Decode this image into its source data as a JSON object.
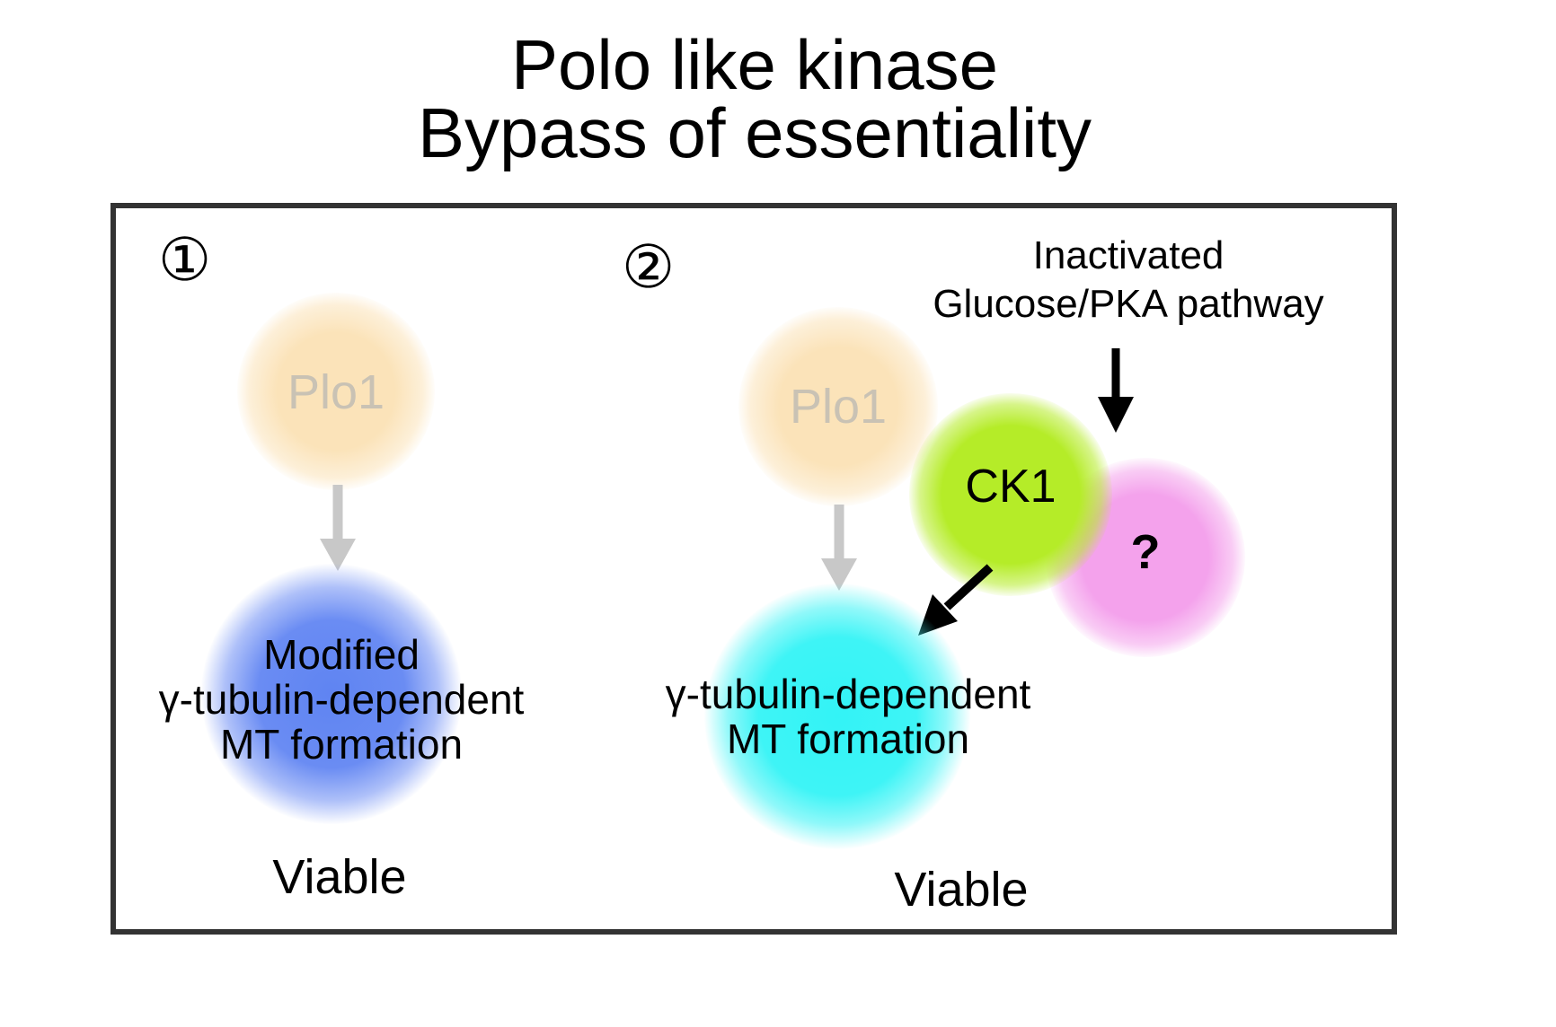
{
  "title": {
    "line1": "Polo like kinase",
    "line2": "Bypass of essentiality"
  },
  "panel1": {
    "number": "①",
    "kinase": "Plo1",
    "target": [
      "Modified",
      "γ-tubulin-dependent",
      "MT formation"
    ],
    "outcome": "Viable"
  },
  "panel2": {
    "number": "②",
    "kinase": "Plo1",
    "pathway": [
      "Inactivated",
      "Glucose/PKA pathway"
    ],
    "ck1": "CK1",
    "unknown": "?",
    "target": [
      "γ-tubulin-dependent",
      "MT formation"
    ],
    "outcome": "Viable"
  },
  "colors": {
    "plo1": "#fbe3b9",
    "modified_mt": "#5f84f2",
    "mt": "#33f3f6",
    "ck1": "#b5ec28",
    "unknown": "#f4a2ec",
    "gray_arrow": "#c8c8c8",
    "frame": "#333333"
  }
}
